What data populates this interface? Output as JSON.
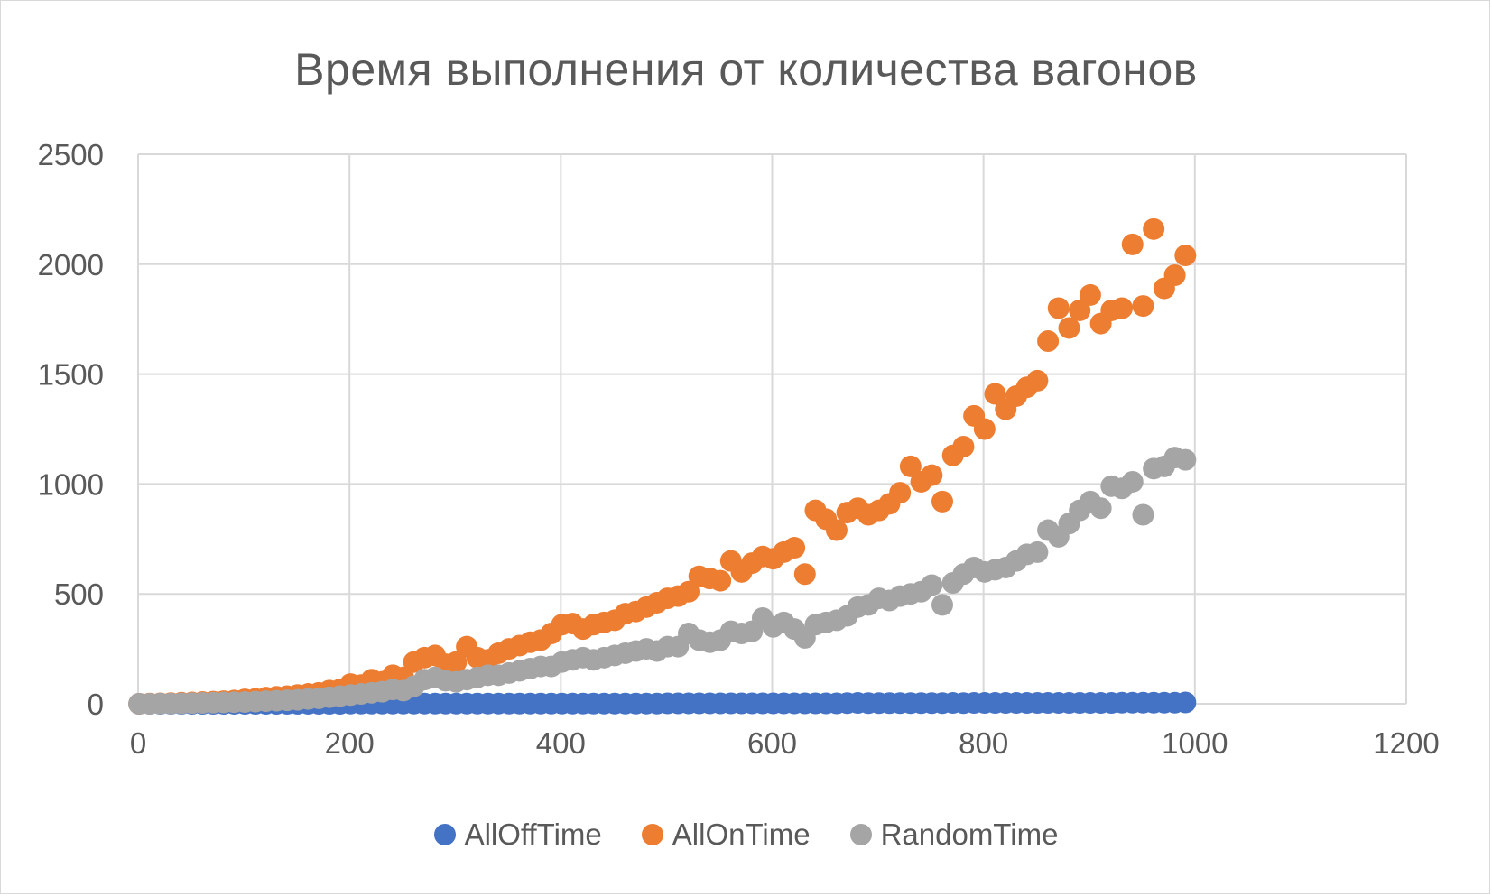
{
  "chart_data": {
    "type": "scatter",
    "title": "Время выполнения от количества вагонов",
    "xlabel": "",
    "ylabel": "",
    "xlim": [
      0,
      1200
    ],
    "ylim": [
      0,
      2500
    ],
    "x_ticks": [
      "0",
      "200",
      "400",
      "600",
      "800",
      "1000",
      "1200"
    ],
    "y_ticks": [
      "0",
      "500",
      "1000",
      "1500",
      "2000",
      "2500"
    ],
    "grid": true,
    "legend_position": "bottom",
    "x": [
      1,
      11,
      21,
      31,
      41,
      51,
      61,
      71,
      81,
      91,
      101,
      111,
      121,
      131,
      141,
      151,
      161,
      171,
      181,
      191,
      201,
      211,
      221,
      231,
      241,
      251,
      261,
      271,
      281,
      291,
      301,
      311,
      321,
      331,
      341,
      351,
      361,
      371,
      381,
      391,
      401,
      411,
      421,
      431,
      441,
      451,
      461,
      471,
      481,
      491,
      501,
      511,
      521,
      531,
      541,
      551,
      561,
      571,
      581,
      591,
      601,
      611,
      621,
      631,
      641,
      651,
      661,
      671,
      681,
      691,
      701,
      711,
      721,
      731,
      741,
      751,
      761,
      771,
      781,
      791,
      801,
      811,
      821,
      831,
      841,
      851,
      861,
      871,
      881,
      891,
      901,
      911,
      921,
      931,
      941,
      951,
      961,
      971,
      981,
      991
    ],
    "series": [
      {
        "name": "AllOffTime",
        "color": "#4472C4",
        "values": [
          0,
          0,
          0,
          0,
          0,
          0,
          0,
          0,
          0,
          0,
          0,
          0,
          0,
          0,
          0,
          0,
          0,
          0,
          0,
          0,
          1,
          1,
          1,
          1,
          1,
          1,
          1,
          1,
          1,
          1,
          1,
          1,
          1,
          1,
          1,
          1,
          1,
          1,
          1,
          1,
          1,
          1,
          1,
          1,
          1,
          1,
          1,
          1,
          1,
          1,
          2,
          2,
          2,
          2,
          2,
          2,
          2,
          2,
          2,
          2,
          2,
          2,
          2,
          2,
          2,
          2,
          2,
          3,
          4,
          3,
          3,
          3,
          3,
          3,
          3,
          3,
          3,
          4,
          3,
          4,
          4,
          4,
          4,
          4,
          4,
          4,
          4,
          4,
          4,
          4,
          4,
          4,
          4,
          5,
          5,
          5,
          5,
          5,
          5,
          6
        ]
      },
      {
        "name": "AllOnTime",
        "color": "#ED7D31",
        "values": [
          0,
          1,
          2,
          3,
          5,
          6,
          8,
          10,
          12,
          15,
          20,
          22,
          28,
          32,
          35,
          40,
          45,
          50,
          60,
          65,
          90,
          85,
          110,
          100,
          130,
          120,
          190,
          210,
          220,
          180,
          190,
          260,
          210,
          200,
          230,
          250,
          265,
          280,
          290,
          320,
          360,
          365,
          340,
          360,
          370,
          380,
          410,
          420,
          440,
          460,
          480,
          490,
          510,
          580,
          570,
          560,
          650,
          600,
          640,
          670,
          660,
          690,
          710,
          590,
          880,
          840,
          790,
          870,
          890,
          860,
          880,
          910,
          960,
          1080,
          1010,
          1040,
          920,
          1130,
          1170,
          1310,
          1250,
          1410,
          1340,
          1400,
          1440,
          1470,
          1650,
          1800,
          1710,
          1790,
          1860,
          1730,
          1790,
          1800,
          2090,
          1810,
          2160,
          1890,
          1950,
          2040
        ]
      },
      {
        "name": "RandomTime",
        "color": "#A5A5A5",
        "values": [
          0,
          0,
          1,
          1,
          2,
          3,
          4,
          5,
          6,
          7,
          8,
          10,
          12,
          14,
          16,
          18,
          22,
          25,
          30,
          35,
          40,
          45,
          50,
          55,
          65,
          60,
          80,
          110,
          120,
          105,
          100,
          110,
          120,
          130,
          130,
          140,
          150,
          160,
          170,
          170,
          190,
          200,
          210,
          200,
          210,
          220,
          230,
          240,
          250,
          240,
          260,
          260,
          320,
          290,
          280,
          290,
          330,
          320,
          330,
          390,
          350,
          370,
          340,
          300,
          360,
          370,
          380,
          400,
          440,
          450,
          480,
          470,
          490,
          500,
          510,
          540,
          450,
          550,
          590,
          620,
          600,
          610,
          620,
          650,
          680,
          690,
          790,
          760,
          820,
          880,
          920,
          890,
          990,
          980,
          1010,
          860,
          1070,
          1080,
          1120,
          1110
        ]
      }
    ]
  }
}
